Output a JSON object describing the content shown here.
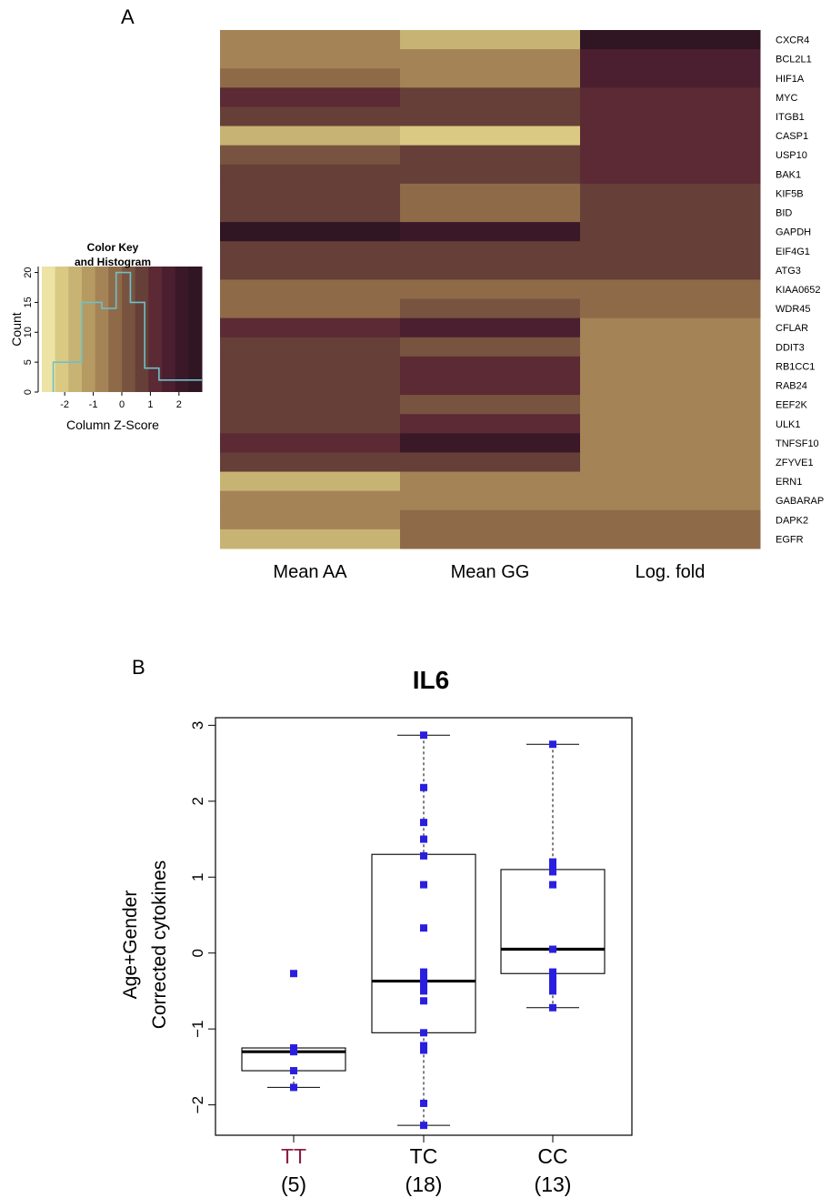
{
  "panel_letters": {
    "a": "A",
    "b": "B"
  },
  "chart_data": [
    {
      "type": "heatmap",
      "columns": [
        "Mean AA",
        "Mean GG",
        "Log. fold"
      ],
      "rows": [
        "CXCR4",
        "BCL2L1",
        "HIF1A",
        "MYC",
        "ITGB1",
        "CASP1",
        "USP10",
        "BAK1",
        "KIF5B",
        "BID",
        "GAPDH",
        "EIF4G1",
        "ATG3",
        "KIAA0652",
        "WDR45",
        "CFLAR",
        "DDIT3",
        "RB1CC1",
        "RAB24",
        "EEF2K",
        "ULK1",
        "TNFSF10",
        "ZFYVE1",
        "ERN1",
        "GABARAP",
        "DAPK2",
        "EGFR"
      ],
      "values": [
        [
          -0.5,
          -1.5,
          2.4
        ],
        [
          -0.5,
          -0.8,
          1.8
        ],
        [
          -0.2,
          -0.8,
          1.8
        ],
        [
          1.2,
          0.7,
          1.0
        ],
        [
          0.7,
          0.7,
          1.0
        ],
        [
          -1.8,
          -1.9,
          1.0
        ],
        [
          0.3,
          0.7,
          1.0
        ],
        [
          0.7,
          0.9,
          1.0
        ],
        [
          0.7,
          -0.3,
          0.7
        ],
        [
          0.7,
          -0.3,
          0.7
        ],
        [
          2.4,
          1.9,
          0.7
        ],
        [
          0.9,
          0.9,
          0.7
        ],
        [
          0.9,
          0.9,
          0.7
        ],
        [
          -0.3,
          -0.3,
          -0.3
        ],
        [
          -0.3,
          0.4,
          -0.3
        ],
        [
          1.1,
          1.8,
          -0.5
        ],
        [
          0.5,
          0.3,
          -0.5
        ],
        [
          0.8,
          1.1,
          -0.5
        ],
        [
          0.8,
          1.1,
          -0.5
        ],
        [
          0.8,
          0.4,
          -0.5
        ],
        [
          0.8,
          1.1,
          -0.5
        ],
        [
          1.3,
          2.0,
          -0.5
        ],
        [
          0.8,
          0.6,
          -0.5
        ],
        [
          -1.6,
          -0.9,
          -0.5
        ],
        [
          -0.6,
          -0.6,
          -0.5
        ],
        [
          -0.6,
          -0.2,
          -0.4
        ],
        [
          -1.6,
          -0.2,
          -0.4
        ]
      ],
      "color_key": {
        "title_line1": "Color Key",
        "title_line2": "and Histogram",
        "xlabel": "Column Z-Score",
        "ylabel": "Count",
        "x_ticks": [
          "-2",
          "-1",
          "0",
          "1",
          "2"
        ],
        "y_ticks": [
          "0",
          "5",
          "10",
          "15",
          "20"
        ],
        "xlim": [
          -2.8,
          2.8
        ],
        "ylim": [
          0,
          21
        ],
        "colors": [
          "#ece3a4",
          "#d9c983",
          "#c7b374",
          "#b59a62",
          "#a48356",
          "#8f6a48",
          "#785440",
          "#663f38",
          "#5b2a34",
          "#4b1f30",
          "#3b1828",
          "#301522"
        ],
        "histogram": {
          "bin_edges": [
            -2.4,
            -1.4,
            -0.7,
            -0.2,
            0.3,
            0.8,
            1.3,
            1.8,
            2.4,
            2.8
          ],
          "counts": [
            5,
            15,
            14,
            20,
            15,
            4,
            2,
            2,
            2
          ]
        }
      }
    },
    {
      "type": "box",
      "title": "IL6",
      "ylabel_line1": "Age+Gender",
      "ylabel_line2": "Corrected cytokines",
      "ylim": [
        -2.4,
        3.1
      ],
      "y_ticks": [
        "3",
        "2",
        "1",
        "0",
        "−1",
        "−2"
      ],
      "y_tick_values": [
        3,
        2,
        1,
        0,
        -1,
        -2
      ],
      "groups": [
        {
          "label": "TT",
          "count": "(5)",
          "label_color": "#8b1c45",
          "whisker_low": -1.77,
          "q1": -1.55,
          "median": -1.3,
          "q3": -1.25,
          "whisker_high": -1.25,
          "points": [
            -0.27,
            -1.25,
            -1.3,
            -1.55,
            -1.77
          ]
        },
        {
          "label": "TC",
          "count": "(18)",
          "label_color": "#000000",
          "whisker_low": -2.27,
          "q1": -1.05,
          "median": -0.37,
          "q3": 1.3,
          "whisker_high": 2.87,
          "points": [
            2.87,
            2.18,
            1.72,
            1.5,
            1.28,
            0.9,
            0.33,
            -0.25,
            -0.32,
            -0.38,
            -0.45,
            -0.5,
            -0.63,
            -1.05,
            -1.22,
            -1.28,
            -1.98,
            -2.27
          ]
        },
        {
          "label": "CC",
          "count": "(13)",
          "label_color": "#000000",
          "whisker_low": -0.72,
          "q1": -0.27,
          "median": 0.05,
          "q3": 1.1,
          "whisker_high": 2.75,
          "points": [
            2.75,
            1.2,
            1.15,
            1.07,
            0.9,
            0.05,
            -0.25,
            -0.3,
            -0.38,
            -0.45,
            -0.5,
            -0.72,
            1.1
          ]
        }
      ]
    }
  ]
}
